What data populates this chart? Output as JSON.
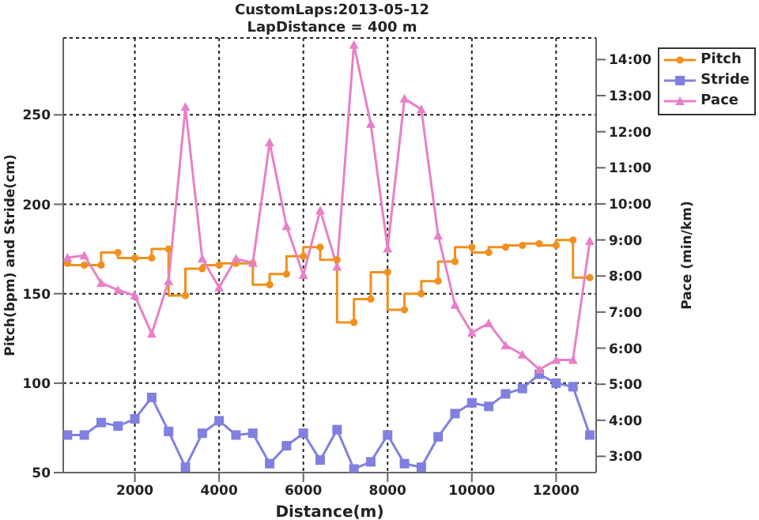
{
  "chart_data": {
    "type": "line",
    "title": "CustomLaps:2013-05-12",
    "subtitle": "LapDistance = 400 m",
    "xlabel": "Distance(m)",
    "ylabel": "Pitch(bpm) and Stride(cm)",
    "y2label": "Pace (min/km)",
    "x": [
      400,
      800,
      1200,
      1600,
      2000,
      2400,
      2800,
      3200,
      3600,
      4000,
      4400,
      4800,
      5200,
      5600,
      6000,
      6400,
      6800,
      7200,
      7600,
      8000,
      8400,
      8800,
      9200,
      9600,
      10000,
      10400,
      10800,
      11200,
      11600,
      12000,
      12400,
      12800
    ],
    "series": [
      {
        "name": "Pitch",
        "type": "step",
        "marker": "circle",
        "color": "#f0901e",
        "values": [
          167,
          166,
          166,
          173,
          170,
          170,
          175,
          149,
          164,
          166,
          167,
          167,
          155,
          161,
          171,
          176,
          169,
          134,
          147,
          162,
          141,
          150,
          157,
          168,
          176,
          173,
          176,
          177,
          178,
          177,
          180,
          159
        ]
      },
      {
        "name": "Stride",
        "marker": "square",
        "color": "#8080e0",
        "values": [
          71,
          71,
          78,
          76,
          80,
          92,
          73,
          53,
          72,
          79,
          71,
          72,
          55,
          65,
          72,
          57,
          74,
          52,
          56,
          71,
          55,
          53,
          70,
          83,
          89,
          87,
          94,
          97,
          105,
          100,
          98,
          71
        ]
      },
      {
        "name": "Pace",
        "marker": "triangle",
        "axis": "y2",
        "color": "#e880c8",
        "values": [
          8.51,
          8.57,
          7.81,
          7.61,
          7.46,
          6.4,
          7.86,
          12.69,
          8.48,
          7.68,
          8.48,
          8.36,
          11.7,
          9.38,
          8.03,
          9.82,
          8.26,
          14.41,
          12.22,
          8.76,
          12.92,
          12.62,
          9.12,
          7.2,
          6.43,
          6.69,
          6.08,
          5.82,
          5.41,
          5.67,
          5.67,
          8.97
        ]
      }
    ],
    "xlim": [
      300,
      12950
    ],
    "xticks": [
      2000,
      4000,
      6000,
      8000,
      10000,
      12000
    ],
    "ylim": [
      50,
      293
    ],
    "yticks": [
      50,
      100,
      150,
      200,
      250
    ],
    "y2lim": [
      2.55,
      14.6
    ],
    "y2ticks": [
      {
        "value": 3,
        "label": "3:00"
      },
      {
        "value": 4,
        "label": "4:00"
      },
      {
        "value": 5,
        "label": "5:00"
      },
      {
        "value": 6,
        "label": "6:00"
      },
      {
        "value": 7,
        "label": "7:00"
      },
      {
        "value": 8,
        "label": "8:00"
      },
      {
        "value": 9,
        "label": "9:00"
      },
      {
        "value": 10,
        "label": "10:00"
      },
      {
        "value": 11,
        "label": "11:00"
      },
      {
        "value": 12,
        "label": "12:00"
      },
      {
        "value": 13,
        "label": "13:00"
      },
      {
        "value": 14,
        "label": "14:00"
      }
    ],
    "grid": true,
    "legend": "top right"
  }
}
